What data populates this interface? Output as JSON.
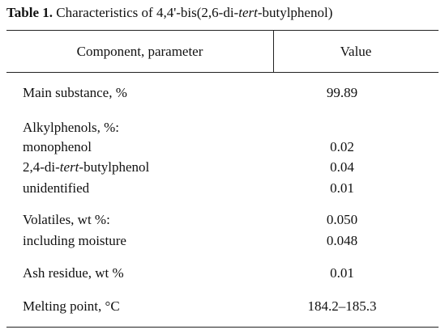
{
  "title": {
    "label": "Table 1.",
    "text": [
      "Characteristics of 4,4'-bis(2,6-di-",
      "tert",
      "-butylphenol)"
    ]
  },
  "table": {
    "header": [
      "Component, parameter",
      "Value"
    ],
    "rows": [
      [
        "Main substance, %",
        "99.89"
      ],
      [
        "Alkylphenols, %:"
      ],
      [
        "monophenol",
        "0.02"
      ],
      [
        [
          "2,4-di-",
          "tert",
          "-butylphenol"
        ],
        "0.04"
      ],
      [
        "unidentified",
        "0.01"
      ],
      [
        "Volatiles, wt %:",
        "0.050"
      ],
      [
        "including moisture",
        "0.048"
      ],
      [
        "Ash residue, wt %",
        "0.01"
      ],
      [
        "Melting point, °C",
        "184.2–185.3"
      ]
    ]
  }
}
